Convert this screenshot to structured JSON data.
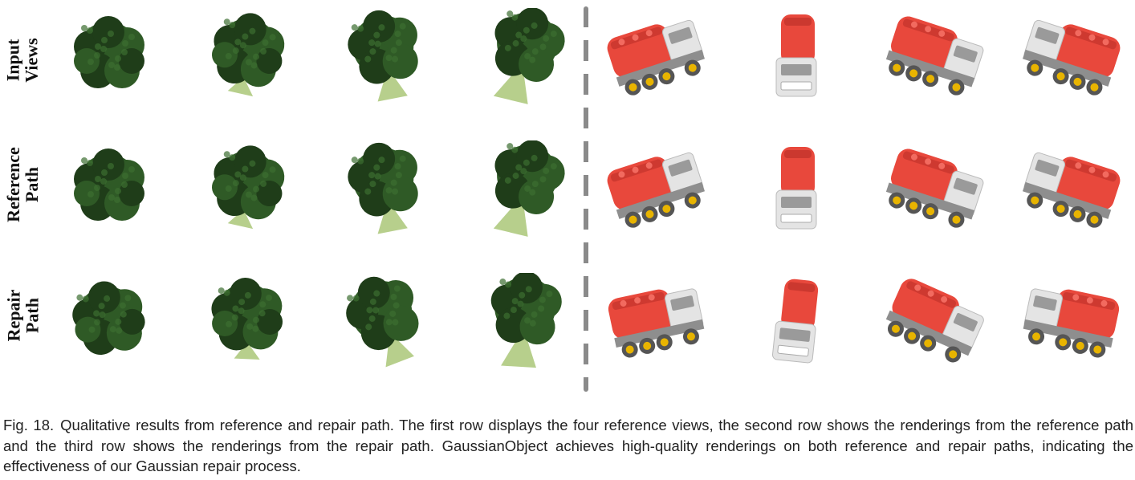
{
  "row_labels": [
    {
      "line1": "Input",
      "line2": "Views"
    },
    {
      "line1": "Reference",
      "line2": "Path"
    },
    {
      "line1": "Repair",
      "line2": "Path"
    }
  ],
  "subjects": [
    {
      "name": "broccoli",
      "views_per_row": 4,
      "colors": {
        "floret": "#2f5a26",
        "floret_dark": "#1f3d19",
        "stem": "#b7cf8c"
      }
    },
    {
      "name": "toy-tanker-truck",
      "views_per_row": 4,
      "colors": {
        "tank": "#e8483c",
        "tank_dark": "#b82e26",
        "cab": "#e4e4e4",
        "wheel": "#555555",
        "hub": "#e8b400"
      }
    }
  ],
  "caption": {
    "figure_number": "Fig. 18.",
    "text": "Qualitative results from reference and repair path. The first row displays the four reference views, the second row shows the renderings from the reference path and the third row shows the renderings from the repair path. GaussianObject achieves high-quality renderings on both reference and repair paths, indicating the effectiveness of our Gaussian repair process."
  }
}
